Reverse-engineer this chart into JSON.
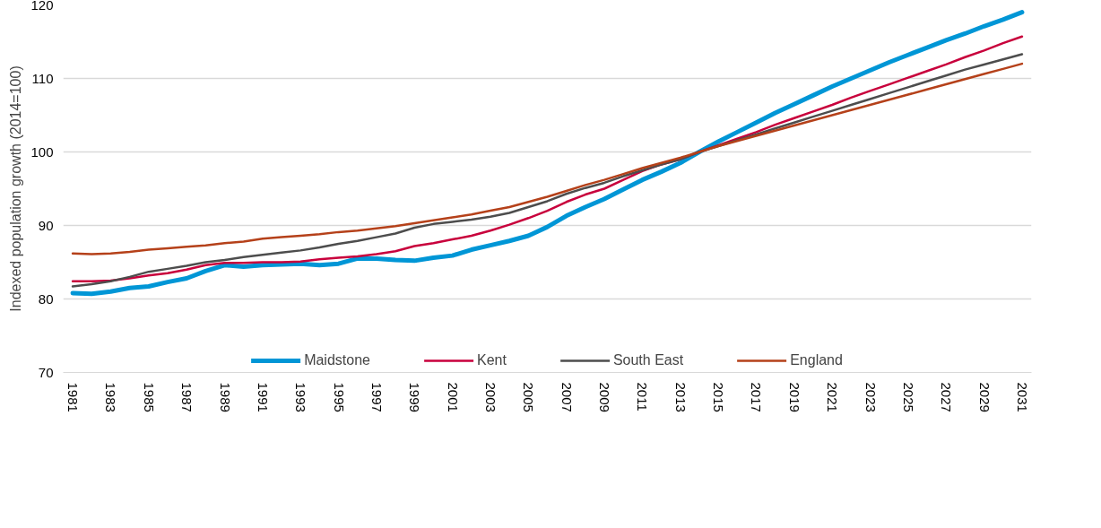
{
  "chart_data": {
    "type": "line",
    "ylabel": "Indexed population growth (2014=100)",
    "x": [
      1981,
      1982,
      1983,
      1984,
      1985,
      1986,
      1987,
      1988,
      1989,
      1990,
      1991,
      1992,
      1993,
      1994,
      1995,
      1996,
      1997,
      1998,
      1999,
      2000,
      2001,
      2002,
      2003,
      2004,
      2005,
      2006,
      2007,
      2008,
      2009,
      2010,
      2011,
      2012,
      2013,
      2014,
      2015,
      2016,
      2017,
      2018,
      2019,
      2020,
      2021,
      2022,
      2023,
      2024,
      2025,
      2026,
      2027,
      2028,
      2029,
      2030,
      2031
    ],
    "xlim": [
      1980.5,
      2031.5
    ],
    "xticks": [
      1981,
      1983,
      1985,
      1987,
      1989,
      1991,
      1993,
      1995,
      1997,
      1999,
      2001,
      2003,
      2005,
      2007,
      2009,
      2011,
      2013,
      2015,
      2017,
      2019,
      2021,
      2023,
      2025,
      2027,
      2029,
      2031
    ],
    "ylim": [
      70,
      120
    ],
    "yticks": [
      70,
      80,
      90,
      100,
      110,
      120
    ],
    "grid": "y",
    "legend": "bottom",
    "marker": "none",
    "line_style": "solid",
    "series": [
      {
        "name": "Maidstone",
        "color": "#0096d6",
        "values": [
          80.8,
          80.7,
          81.0,
          81.5,
          81.7,
          82.3,
          82.8,
          83.8,
          84.6,
          84.4,
          84.6,
          84.7,
          84.8,
          84.6,
          84.8,
          85.5,
          85.5,
          85.3,
          85.2,
          85.6,
          85.9,
          86.7,
          87.3,
          87.9,
          88.6,
          89.8,
          91.3,
          92.5,
          93.6,
          94.9,
          96.2,
          97.3,
          98.5,
          100,
          101.4,
          102.7,
          104.0,
          105.3,
          106.5,
          107.7,
          108.9,
          110.0,
          111.1,
          112.2,
          113.2,
          114.2,
          115.2,
          116.1,
          117.1,
          118.0,
          119.0
        ]
      },
      {
        "name": "Kent",
        "color": "#c8003c",
        "values": [
          82.4,
          82.4,
          82.5,
          82.8,
          83.2,
          83.5,
          84.0,
          84.6,
          84.9,
          84.9,
          85.0,
          85.0,
          85.1,
          85.4,
          85.6,
          85.8,
          86.1,
          86.5,
          87.2,
          87.6,
          88.1,
          88.6,
          89.3,
          90.1,
          91.0,
          92.0,
          93.2,
          94.2,
          95.0,
          96.2,
          97.4,
          98.3,
          99.0,
          100,
          100.9,
          101.8,
          102.7,
          103.7,
          104.6,
          105.5,
          106.4,
          107.4,
          108.3,
          109.2,
          110.1,
          111.0,
          111.9,
          112.9,
          113.8,
          114.8,
          115.7
        ]
      },
      {
        "name": "South East",
        "color": "#4d4d4d",
        "values": [
          81.7,
          82.0,
          82.4,
          83.0,
          83.7,
          84.1,
          84.5,
          85.0,
          85.3,
          85.7,
          86.0,
          86.3,
          86.6,
          87.0,
          87.5,
          87.9,
          88.4,
          88.9,
          89.7,
          90.2,
          90.5,
          90.8,
          91.2,
          91.7,
          92.5,
          93.3,
          94.3,
          95.1,
          95.8,
          96.7,
          97.5,
          98.3,
          99.0,
          100,
          100.8,
          101.6,
          102.4,
          103.2,
          104.0,
          104.8,
          105.6,
          106.4,
          107.2,
          108.0,
          108.8,
          109.6,
          110.4,
          111.2,
          111.9,
          112.6,
          113.3
        ]
      },
      {
        "name": "England",
        "color": "#b5411a",
        "values": [
          86.2,
          86.1,
          86.2,
          86.4,
          86.7,
          86.9,
          87.1,
          87.3,
          87.6,
          87.8,
          88.2,
          88.4,
          88.6,
          88.8,
          89.1,
          89.3,
          89.6,
          89.9,
          90.3,
          90.7,
          91.1,
          91.5,
          92.0,
          92.5,
          93.2,
          93.9,
          94.7,
          95.5,
          96.2,
          97.0,
          97.8,
          98.5,
          99.2,
          100,
          100.8,
          101.5,
          102.2,
          102.9,
          103.6,
          104.3,
          105.0,
          105.7,
          106.4,
          107.1,
          107.8,
          108.5,
          109.2,
          109.9,
          110.6,
          111.3,
          112.0
        ]
      }
    ]
  }
}
